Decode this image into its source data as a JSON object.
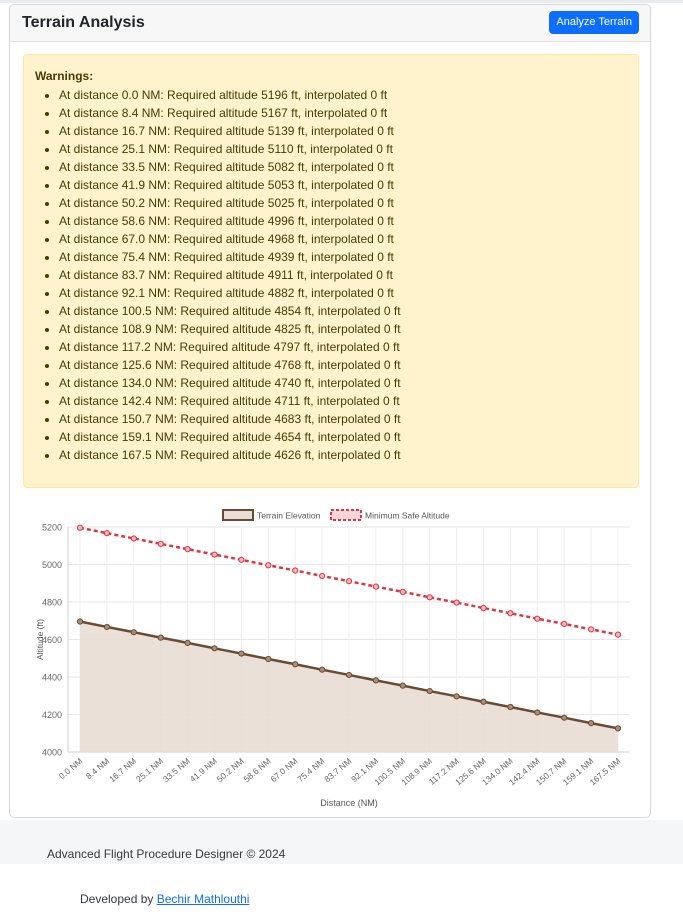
{
  "header": {
    "title": "Terrain Analysis",
    "analyze_button": "Analyze Terrain"
  },
  "warnings": {
    "title": "Warnings:",
    "items": [
      "At distance 0.0 NM: Required altitude 5196 ft, interpolated 0 ft",
      "At distance 8.4 NM: Required altitude 5167 ft, interpolated 0 ft",
      "At distance 16.7 NM: Required altitude 5139 ft, interpolated 0 ft",
      "At distance 25.1 NM: Required altitude 5110 ft, interpolated 0 ft",
      "At distance 33.5 NM: Required altitude 5082 ft, interpolated 0 ft",
      "At distance 41.9 NM: Required altitude 5053 ft, interpolated 0 ft",
      "At distance 50.2 NM: Required altitude 5025 ft, interpolated 0 ft",
      "At distance 58.6 NM: Required altitude 4996 ft, interpolated 0 ft",
      "At distance 67.0 NM: Required altitude 4968 ft, interpolated 0 ft",
      "At distance 75.4 NM: Required altitude 4939 ft, interpolated 0 ft",
      "At distance 83.7 NM: Required altitude 4911 ft, interpolated 0 ft",
      "At distance 92.1 NM: Required altitude 4882 ft, interpolated 0 ft",
      "At distance 100.5 NM: Required altitude 4854 ft, interpolated 0 ft",
      "At distance 108.9 NM: Required altitude 4825 ft, interpolated 0 ft",
      "At distance 117.2 NM: Required altitude 4797 ft, interpolated 0 ft",
      "At distance 125.6 NM: Required altitude 4768 ft, interpolated 0 ft",
      "At distance 134.0 NM: Required altitude 4740 ft, interpolated 0 ft",
      "At distance 142.4 NM: Required altitude 4711 ft, interpolated 0 ft",
      "At distance 150.7 NM: Required altitude 4683 ft, interpolated 0 ft",
      "At distance 159.1 NM: Required altitude 4654 ft, interpolated 0 ft",
      "At distance 167.5 NM: Required altitude 4626 ft, interpolated 0 ft"
    ]
  },
  "chart_data": {
    "type": "line",
    "title": "",
    "xlabel": "Distance (NM)",
    "ylabel": "Altitude (ft)",
    "ylim": [
      4000,
      5200
    ],
    "yticks": [
      4000,
      4200,
      4400,
      4600,
      4800,
      5000,
      5200
    ],
    "grid": true,
    "legend": "top-center",
    "categories": [
      "0.0 NM",
      "8.4 NM",
      "16.7 NM",
      "25.1 NM",
      "33.5 NM",
      "41.9 NM",
      "50.2 NM",
      "58.6 NM",
      "67.0 NM",
      "75.4 NM",
      "83.7 NM",
      "92.1 NM",
      "100.5 NM",
      "108.9 NM",
      "117.2 NM",
      "125.6 NM",
      "134.0 NM",
      "142.4 NM",
      "150.7 NM",
      "159.1 NM",
      "167.5 NM"
    ],
    "series": [
      {
        "name": "Terrain Elevation",
        "color": "#6b4a33",
        "fill": "#e8ddd4",
        "filled": true,
        "values": [
          4696,
          4667,
          4639,
          4610,
          4582,
          4553,
          4525,
          4496,
          4468,
          4439,
          4411,
          4382,
          4354,
          4325,
          4297,
          4268,
          4240,
          4211,
          4183,
          4154,
          4126
        ]
      },
      {
        "name": "Minimum Safe Altitude",
        "color": "#dc3545",
        "dashed": true,
        "values": [
          5196,
          5167,
          5139,
          5110,
          5082,
          5053,
          5025,
          4996,
          4968,
          4939,
          4911,
          4882,
          4854,
          4825,
          4797,
          4768,
          4740,
          4711,
          4683,
          4654,
          4626
        ]
      }
    ]
  },
  "footer": {
    "text": "Advanced Flight Procedure Designer © 2024",
    "developed_by": "Developed by",
    "author": "Bechir Mathlouthi"
  }
}
